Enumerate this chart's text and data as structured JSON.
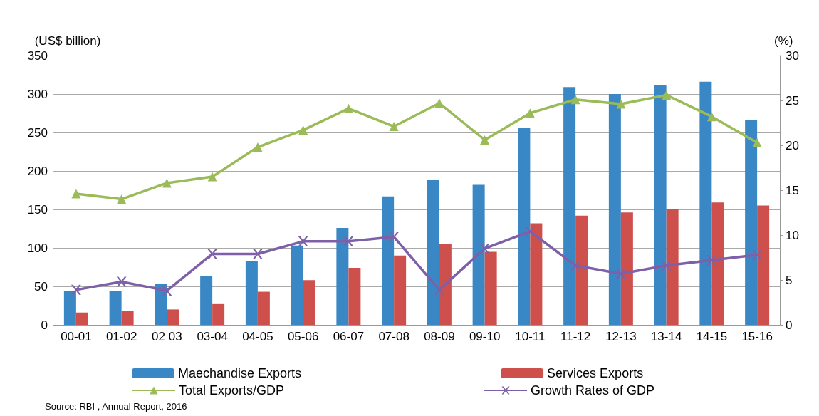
{
  "chart_data": {
    "type": "bar",
    "ylabel": "(US$ billion)",
    "y2label": "(%)",
    "categories": [
      "00-01",
      "01-02",
      "02 03",
      "03-04",
      "04-05",
      "05-06",
      "06-07",
      "07-08",
      "08-09",
      "09-10",
      "10-11",
      "11-12",
      "12-13",
      "13-14",
      "14-15",
      "15-16"
    ],
    "series": [
      {
        "name": "Maechandise Exports",
        "color": "#3a87c6",
        "values": [
          44,
          44,
          53,
          64,
          83,
          103,
          126,
          167,
          189,
          182,
          256,
          309,
          300,
          312,
          316,
          266
        ]
      },
      {
        "name": "Services Exports",
        "color": "#cd504c",
        "values": [
          16,
          18,
          20,
          27,
          43,
          58,
          74,
          90,
          105,
          95,
          132,
          142,
          146,
          151,
          159,
          155
        ]
      },
      {
        "name": "Total Exports/GDP",
        "type": "line",
        "axis": "y2",
        "marker": "triangle",
        "color": "#9bbb59",
        "values": [
          14.6,
          14.0,
          15.8,
          16.5,
          19.8,
          21.7,
          24.1,
          22.1,
          24.7,
          20.6,
          23.6,
          25.1,
          24.6,
          25.6,
          23.2,
          20.3
        ]
      },
      {
        "name": "Growth Rates of GDP",
        "type": "line",
        "axis": "y2",
        "marker": "cross",
        "color": "#7e60a8",
        "values": [
          3.9,
          4.8,
          3.8,
          7.9,
          7.9,
          9.3,
          9.3,
          9.8,
          3.9,
          8.5,
          10.4,
          6.6,
          5.7,
          6.6,
          7.2,
          7.8
        ]
      }
    ],
    "ylim": [
      0,
      350
    ],
    "yticks": [
      0,
      50,
      100,
      150,
      200,
      250,
      300,
      350
    ],
    "y2lim": [
      0,
      30
    ],
    "y2ticks": [
      0,
      5,
      10,
      15,
      20,
      25,
      30
    ],
    "grid": "y",
    "legend": "bottom",
    "annotations": [
      "Source: RBI , Annual Report, 2016"
    ]
  }
}
